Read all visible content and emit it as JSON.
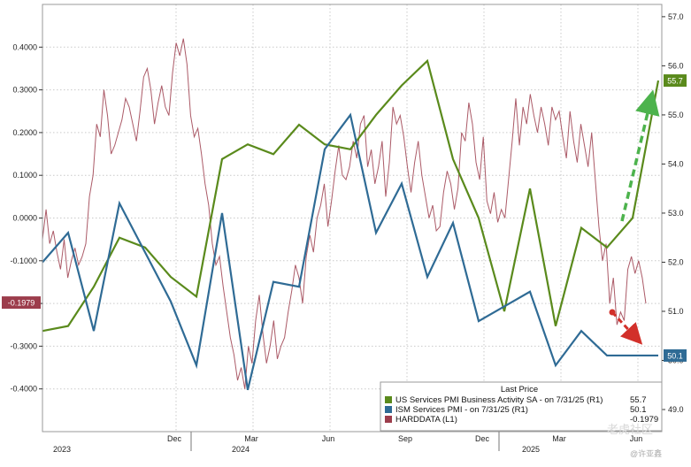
{
  "chart_data": {
    "type": "line",
    "x_axis": {
      "ticks": [
        "Dec",
        "Mar",
        "Jun",
        "Sep",
        "Dec",
        "Mar",
        "Jun"
      ],
      "years": [
        "2023",
        "2024",
        "2025"
      ]
    },
    "left_axis": {
      "ylim": [
        -0.5,
        0.5
      ],
      "ticks": [
        "0.4000",
        "0.3000",
        "0.2000",
        "0.1000",
        "0.0000",
        "-0.1000",
        "-0.2000",
        "-0.3000",
        "-0.4000"
      ],
      "tick_values": [
        0.4,
        0.3,
        0.2,
        0.1,
        0.0,
        -0.1,
        -0.2,
        -0.3,
        -0.4
      ]
    },
    "right_axis": {
      "ylim": [
        48.55,
        57.25
      ],
      "ticks": [
        "57.0",
        "56.0",
        "55.0",
        "54.0",
        "53.0",
        "52.0",
        "51.0",
        "50.0",
        "49.0"
      ],
      "tick_values": [
        57,
        56,
        55,
        54,
        53,
        52,
        51,
        50,
        49
      ]
    },
    "series": [
      {
        "name": "US Services PMI Business Activity SA - on 7/31/25 (R1)",
        "axis": "right",
        "color": "#5a8a1c",
        "last_label": "55.7",
        "x": [
          "2023-07",
          "2023-08",
          "2023-09",
          "2023-10",
          "2023-11",
          "2023-12",
          "2024-01",
          "2024-02",
          "2024-03",
          "2024-04",
          "2024-05",
          "2024-06",
          "2024-07",
          "2024-08",
          "2024-09",
          "2024-10",
          "2024-11",
          "2024-12",
          "2025-01",
          "2025-02",
          "2025-03",
          "2025-04",
          "2025-05",
          "2025-06",
          "2025-07"
        ],
        "values": [
          50.6,
          50.7,
          51.5,
          52.5,
          52.3,
          51.7,
          51.3,
          54.1,
          54.4,
          54.2,
          54.8,
          54.4,
          54.3,
          55.0,
          55.6,
          56.1,
          54.1,
          52.9,
          51.0,
          53.5,
          50.7,
          52.7,
          52.3,
          52.9,
          55.7
        ]
      },
      {
        "name": "ISM Services PMI - on 7/31/25 (R1)",
        "axis": "right",
        "color": "#2f6b95",
        "last_label": "50.1",
        "x": [
          "2023-07",
          "2023-08",
          "2023-09",
          "2023-10",
          "2023-11",
          "2023-12",
          "2024-01",
          "2024-02",
          "2024-03",
          "2024-04",
          "2024-05",
          "2024-06",
          "2024-07",
          "2024-08",
          "2024-09",
          "2024-10",
          "2024-11",
          "2024-12",
          "2025-01",
          "2025-02",
          "2025-03",
          "2025-04",
          "2025-05",
          "2025-06",
          "2025-07"
        ],
        "values": [
          52.0,
          52.6,
          50.6,
          53.2,
          52.2,
          51.2,
          49.9,
          53.0,
          49.4,
          51.6,
          51.5,
          54.3,
          55.0,
          52.6,
          53.6,
          51.7,
          52.8,
          50.8,
          51.1,
          51.4,
          49.9,
          50.6,
          50.1,
          50.1,
          50.1
        ]
      },
      {
        "name": "HARDDATA (L1)",
        "axis": "left",
        "color": "#9c3d4c",
        "last_label": "-0.1979",
        "values": [
          -0.05,
          0.02,
          -0.06,
          -0.03,
          -0.08,
          -0.12,
          -0.05,
          -0.14,
          -0.1,
          -0.07,
          -0.11,
          -0.09,
          -0.06,
          0.05,
          0.1,
          0.22,
          0.19,
          0.3,
          0.24,
          0.15,
          0.17,
          0.2,
          0.23,
          0.28,
          0.26,
          0.22,
          0.18,
          0.25,
          0.33,
          0.35,
          0.3,
          0.22,
          0.27,
          0.31,
          0.26,
          0.24,
          0.34,
          0.41,
          0.38,
          0.42,
          0.36,
          0.24,
          0.19,
          0.21,
          0.15,
          0.08,
          0.03,
          -0.06,
          -0.11,
          -0.09,
          -0.16,
          -0.22,
          -0.28,
          -0.32,
          -0.38,
          -0.35,
          -0.4,
          -0.3,
          -0.34,
          -0.24,
          -0.18,
          -0.27,
          -0.34,
          -0.3,
          -0.24,
          -0.33,
          -0.3,
          -0.28,
          -0.22,
          -0.17,
          -0.11,
          -0.14,
          -0.2,
          -0.09,
          -0.04,
          -0.08,
          0.0,
          0.03,
          0.08,
          -0.02,
          0.04,
          0.11,
          0.17,
          0.1,
          0.09,
          0.12,
          0.18,
          0.14,
          0.22,
          0.24,
          0.12,
          0.16,
          0.08,
          0.12,
          0.18,
          0.05,
          0.13,
          0.26,
          0.22,
          0.24,
          0.19,
          0.12,
          0.06,
          0.13,
          0.18,
          0.1,
          0.05,
          0.0,
          0.03,
          -0.03,
          -0.02,
          0.06,
          0.11,
          0.08,
          0.02,
          0.07,
          0.2,
          0.18,
          0.27,
          0.22,
          0.13,
          0.09,
          0.19,
          0.04,
          0.01,
          0.06,
          -0.01,
          0.02,
          0.0,
          0.09,
          0.18,
          0.28,
          0.17,
          0.26,
          0.22,
          0.29,
          0.24,
          0.2,
          0.26,
          0.22,
          0.17,
          0.26,
          0.23,
          0.25,
          0.19,
          0.14,
          0.25,
          0.18,
          0.13,
          0.22,
          0.17,
          0.12,
          0.2,
          0.09,
          -0.02,
          -0.1,
          -0.06,
          -0.2,
          -0.14,
          -0.25,
          -0.22,
          -0.24,
          -0.12,
          -0.09,
          -0.13,
          -0.1,
          -0.14,
          -0.2
        ]
      }
    ],
    "legend": {
      "header": "Last Price",
      "entries": [
        {
          "label": "US Services PMI Business Activity SA -  on 7/31/25  (R1)",
          "value": "55.7",
          "color": "#5a8a1c"
        },
        {
          "label": "ISM Services PMI -  on 7/31/25  (R1)",
          "value": "50.1",
          "color": "#2f6b95"
        },
        {
          "label": "HARDDATA  (L1)",
          "value": "-0.1979",
          "color": "#9c3d4c"
        }
      ]
    },
    "annotations": {
      "green_arrow": "up",
      "red_arrow": "down",
      "arrow_colors": {
        "green": "#4db34d",
        "red": "#d2302a"
      }
    },
    "grid": true
  },
  "watermark": {
    "text1": "老虎社区",
    "text2": "@许亚鑫"
  }
}
